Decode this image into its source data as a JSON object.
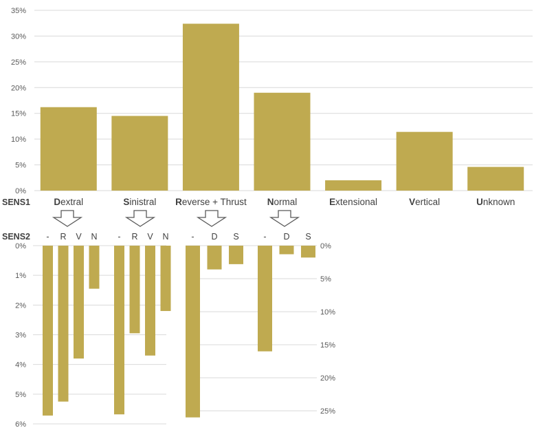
{
  "colors": {
    "bar": "#bfaa50",
    "grid": "#d9d9d9",
    "text": "#404040",
    "tick": "#595959",
    "arrow": "#595959"
  },
  "chart_data": [
    {
      "type": "bar",
      "row_label": "SENS1",
      "categories": [
        {
          "initial": "D",
          "rest": "extral"
        },
        {
          "initial": "S",
          "rest": "inistral"
        },
        {
          "initial": "R",
          "rest": "everse + Thrust"
        },
        {
          "initial": "N",
          "rest": "ormal"
        },
        {
          "initial": "E",
          "rest": "xtensional"
        },
        {
          "initial": "V",
          "rest": "ertical"
        },
        {
          "initial": "U",
          "rest": "nknown"
        }
      ],
      "values": [
        16.2,
        14.5,
        32.4,
        19.0,
        2.0,
        11.4,
        4.6
      ],
      "ylim": [
        0,
        35
      ],
      "yticks": [
        "0%",
        "5%",
        "10%",
        "15%",
        "20%",
        "25%",
        "30%",
        "35%"
      ],
      "grid": true
    },
    {
      "type": "bar",
      "row_label": "SENS2",
      "orientation": "downward",
      "groups": [
        {
          "parent": "Dextral",
          "labels": [
            "-",
            "R",
            "V",
            "N"
          ],
          "values": [
            5.72,
            5.25,
            3.8,
            1.45
          ]
        },
        {
          "parent": "Sinistral",
          "labels": [
            "-",
            "R",
            "V",
            "N"
          ],
          "values": [
            5.68,
            2.95,
            3.7,
            2.2
          ]
        }
      ],
      "ylim": [
        0,
        6
      ],
      "yticks": [
        "0%",
        "1%",
        "2%",
        "3%",
        "4%",
        "5%",
        "6%"
      ],
      "grid": true
    },
    {
      "type": "bar",
      "orientation": "downward",
      "groups": [
        {
          "parent": "Reverse + Thrust",
          "labels": [
            "-",
            "D",
            "S"
          ],
          "values": [
            26.0,
            3.6,
            2.8
          ]
        },
        {
          "parent": "Normal",
          "labels": [
            "-",
            "D",
            "S"
          ],
          "values": [
            16.0,
            1.3,
            1.8
          ]
        }
      ],
      "ylim": [
        0,
        27
      ],
      "yticks": [
        "0%",
        "5%",
        "10%",
        "15%",
        "20%",
        "25%"
      ],
      "grid": true
    }
  ]
}
